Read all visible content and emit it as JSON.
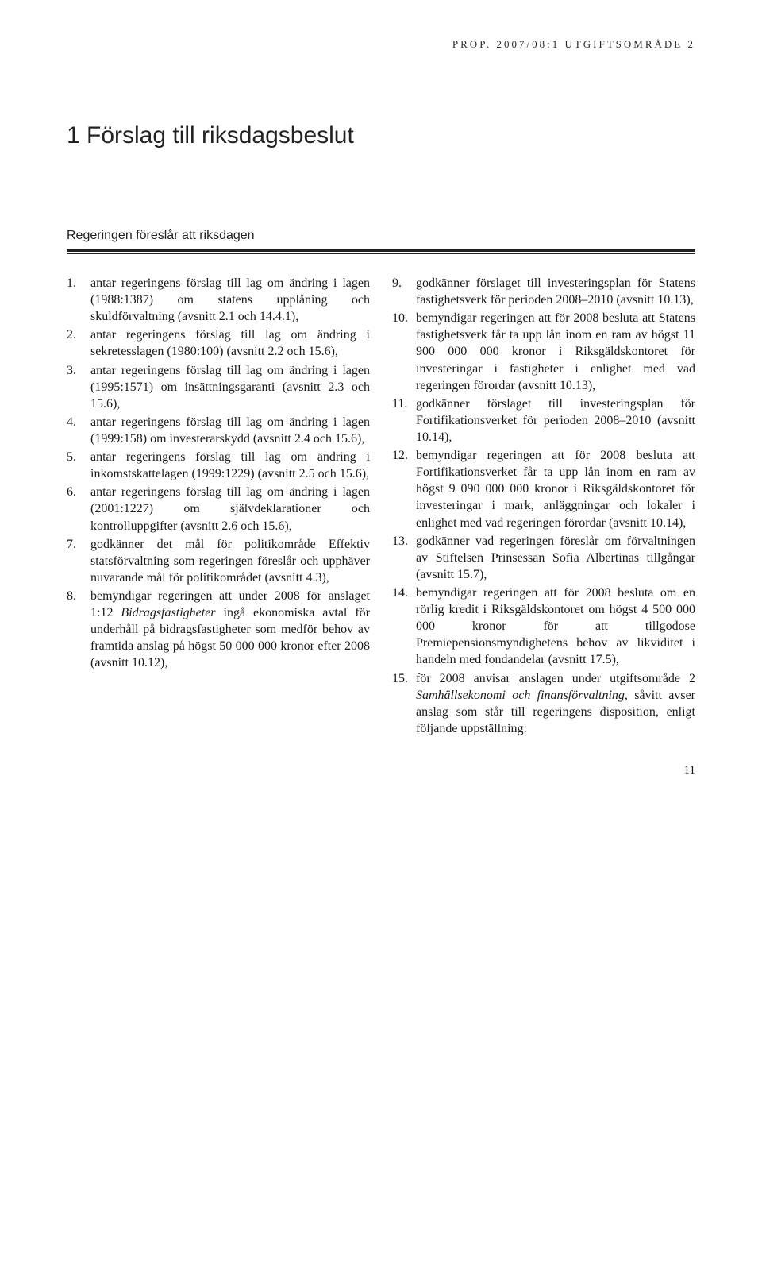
{
  "running_head": "PROP. 2007/08:1 UTGIFTSOMRÅDE 2",
  "chapter_title": "1 Förslag till riksdagsbeslut",
  "intro": "Regeringen föreslår att riksdagen",
  "page_number": "11",
  "left_items": [
    {
      "n": "1.",
      "t": "antar regeringens förslag till lag om ändring i lagen (1988:1387) om statens upplåning och skuldförvaltning (avsnitt 2.1 och 14.4.1),"
    },
    {
      "n": "2.",
      "t": "antar regeringens förslag till lag om ändring i sekretesslagen (1980:100) (avsnitt 2.2 och 15.6),"
    },
    {
      "n": "3.",
      "t": "antar regeringens förslag till lag om ändring i lagen (1995:1571) om insättningsgaranti (avsnitt 2.3 och 15.6),"
    },
    {
      "n": "4.",
      "t": "antar regeringens förslag till lag om ändring i lagen (1999:158) om investerarskydd (avsnitt 2.4 och 15.6),"
    },
    {
      "n": "5.",
      "t": "antar regeringens förslag till lag om ändring i inkomstskattelagen (1999:1229) (avsnitt 2.5 och 15.6),"
    },
    {
      "n": "6.",
      "t": "antar regeringens förslag till lag om ändring i lagen (2001:1227) om självdeklarationer och kontrolluppgifter (avsnitt 2.6 och 15.6),"
    },
    {
      "n": "7.",
      "t": "godkänner det mål för politikområde Effektiv statsförvaltning som regeringen föreslår och upphäver nuvarande mål för politikområdet (avsnitt 4.3),"
    },
    {
      "n": "8.",
      "t": "bemyndigar regeringen att under 2008 för anslaget 1:12 <em class=\"italic\">Bidragsfastigheter</em> ingå ekonomiska avtal för underhåll på bidragsfastigheter som medför behov av framtida anslag på högst 50 000 000 kronor efter 2008 (avsnitt 10.12),"
    }
  ],
  "right_items": [
    {
      "n": "9.",
      "t": "godkänner förslaget till investeringsplan för Statens fastighetsverk för perioden 2008–2010 (avsnitt 10.13),"
    },
    {
      "n": "10.",
      "t": "bemyndigar regeringen att för 2008 besluta att Statens fastighetsverk får ta upp lån inom en ram av högst 11 900 000 000 kronor i Riksgäldskontoret för investeringar i fastigheter i enlighet med vad regeringen förordar (avsnitt 10.13),"
    },
    {
      "n": "11.",
      "t": "godkänner förslaget till investeringsplan för Fortifikationsverket för perioden 2008–2010 (avsnitt 10.14),"
    },
    {
      "n": "12.",
      "t": "bemyndigar regeringen att för 2008 besluta att Fortifikationsverket får ta upp lån inom en ram av högst 9 090 000 000 kronor i Riksgäldskontoret för investeringar i mark, anläggningar och lokaler i enlighet med vad regeringen förordar (avsnitt 10.14),"
    },
    {
      "n": "13.",
      "t": "godkänner vad regeringen föreslår om förvaltningen av Stiftelsen Prinsessan Sofia Albertinas tillgångar (avsnitt 15.7),"
    },
    {
      "n": "14.",
      "t": "bemyndigar regeringen att för 2008 besluta om en rörlig kredit i Riksgäldskontoret om högst 4 500 000 000 kronor för att tillgodose Premiepensionsmyndighetens behov av likviditet i handeln med fondandelar (avsnitt 17.5),"
    },
    {
      "n": "15.",
      "t": "för 2008 anvisar anslagen under utgiftsområde 2 <em class=\"italic\">Samhällsekonomi och finansförvaltning</em>, såvitt avser anslag som står till regeringens disposition, enligt följande uppställning:"
    }
  ]
}
